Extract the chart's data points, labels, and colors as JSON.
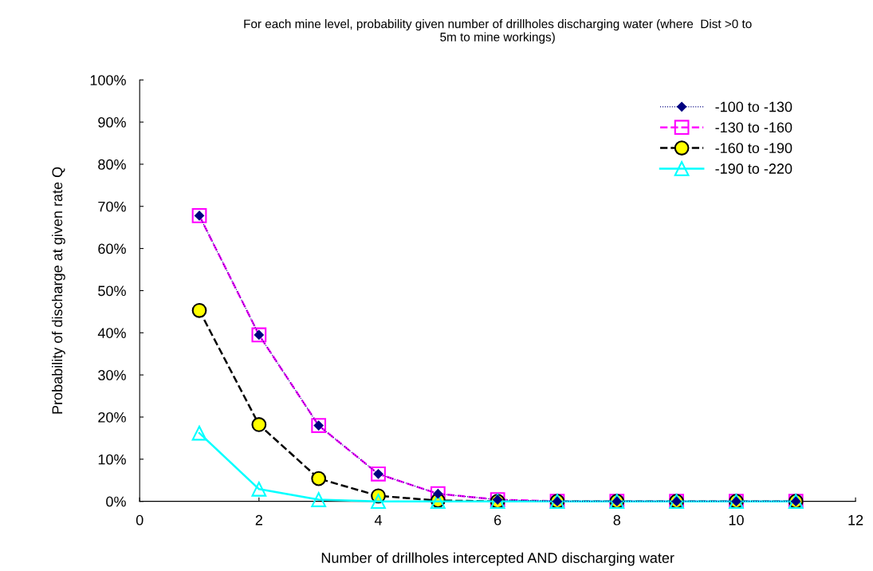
{
  "chart_data": {
    "type": "line",
    "title": "For each mine level, probability given number of drillholes discharging water (where  Dist >0 to\n5m to mine workings)",
    "xlabel": "Number of drillholes intercepted AND discharging water",
    "ylabel": "Probability of discharge at given rate Q",
    "x": [
      1,
      2,
      3,
      4,
      5,
      6,
      7,
      8,
      9,
      10,
      11
    ],
    "series": [
      {
        "name": "-100 to -130",
        "color": "#000080",
        "marker": "diamond",
        "line_style": "dotted",
        "values": [
          67.8,
          39.5,
          18.0,
          6.5,
          1.8,
          0.4,
          0,
          0,
          0,
          0,
          0
        ]
      },
      {
        "name": "-130 to -160",
        "color": "#ff00ff",
        "marker": "square",
        "line_style": "dashed",
        "values": [
          67.8,
          39.5,
          18.0,
          6.5,
          1.8,
          0.4,
          0,
          0,
          0,
          0,
          0
        ]
      },
      {
        "name": "-160 to -190",
        "color": "#000000",
        "marker": "circle",
        "line_style": "dashed",
        "values": [
          45.3,
          18.2,
          5.4,
          1.3,
          0.2,
          0,
          0,
          0,
          0,
          0,
          0
        ]
      },
      {
        "name": "-190 to -220",
        "color": "#00ffff",
        "marker": "triangle",
        "line_style": "solid",
        "values": [
          16.2,
          2.9,
          0.4,
          0,
          0,
          0,
          0,
          0,
          0,
          0,
          0
        ]
      }
    ],
    "xlim": [
      0,
      12
    ],
    "xticks": [
      0,
      2,
      4,
      6,
      8,
      10,
      12
    ],
    "ylim": [
      0,
      100
    ],
    "yticks": [
      {
        "value": 0,
        "label": "0%"
      },
      {
        "value": 10,
        "label": "10%"
      },
      {
        "value": 20,
        "label": "20%"
      },
      {
        "value": 30,
        "label": "30%"
      },
      {
        "value": 40,
        "label": "40%"
      },
      {
        "value": 50,
        "label": "50%"
      },
      {
        "value": 60,
        "label": "60%"
      },
      {
        "value": 70,
        "label": "70%"
      },
      {
        "value": 80,
        "label": "80%"
      },
      {
        "value": 90,
        "label": "90%"
      },
      {
        "value": 100,
        "label": "100%"
      }
    ],
    "grid": false,
    "legend": "top right"
  }
}
